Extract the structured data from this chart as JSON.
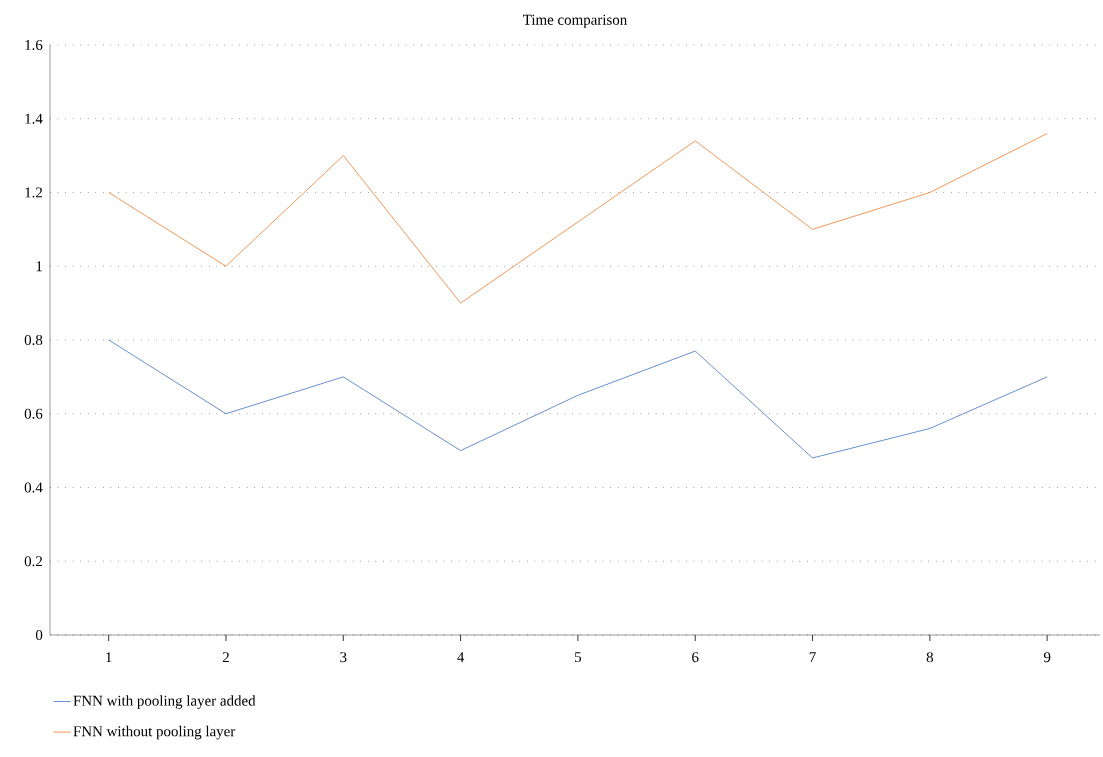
{
  "chart_data": {
    "type": "line",
    "title": "Time comparison",
    "x": [
      1,
      2,
      3,
      4,
      5,
      6,
      7,
      8,
      9
    ],
    "series": [
      {
        "name": "FNN with pooling layer added",
        "color": "#4472c4",
        "values": [
          0.8,
          0.6,
          0.7,
          0.5,
          0.65,
          0.77,
          0.48,
          0.56,
          0.7
        ]
      },
      {
        "name": "FNN without pooling layer",
        "color": "#ed7d31",
        "values": [
          1.2,
          1.0,
          1.3,
          0.9,
          1.12,
          1.34,
          1.1,
          1.2,
          1.36
        ]
      }
    ],
    "xlim": [
      0.5,
      9.45
    ],
    "ylim": [
      0,
      1.6
    ],
    "xticks": [
      1,
      2,
      3,
      4,
      5,
      6,
      7,
      8,
      9
    ],
    "yticks": [
      0,
      0.2,
      0.4,
      0.6,
      0.8,
      1,
      1.2,
      1.4,
      1.6
    ],
    "grid": "y",
    "legend": "bottom left"
  }
}
